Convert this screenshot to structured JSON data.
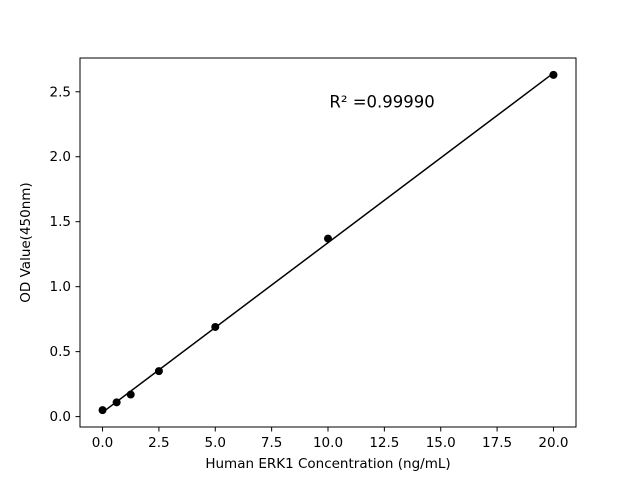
{
  "chart_data": {
    "type": "scatter",
    "x": [
      0,
      0.625,
      1.25,
      2.5,
      5,
      10,
      20
    ],
    "y": [
      0.05,
      0.11,
      0.17,
      0.35,
      0.69,
      1.37,
      2.63
    ],
    "fit_line": {
      "x1": 0,
      "y1": 0.033,
      "x2": 20,
      "y2": 2.644
    },
    "title": "",
    "xlabel": "Human ERK1 Concentration (ng/mL)",
    "ylabel": "OD Value(450nm)",
    "xlim": [
      -1,
      21
    ],
    "ylim": [
      -0.08,
      2.76
    ],
    "xticks": [
      0,
      2.5,
      5,
      7.5,
      10,
      12.5,
      15,
      17.5,
      20
    ],
    "xtick_labels": [
      "0.0",
      "2.5",
      "5.0",
      "7.5",
      "10.0",
      "12.5",
      "15.0",
      "17.5",
      "20.0"
    ],
    "yticks": [
      0,
      0.5,
      1,
      1.5,
      2,
      2.5
    ],
    "ytick_labels": [
      "0.0",
      "0.5",
      "1.0",
      "1.5",
      "2.0",
      "2.5"
    ],
    "annotation": {
      "text": "R² =0.99990",
      "x": 12.4,
      "y": 2.38
    },
    "marker_color": "#000000",
    "line_color": "#000000",
    "spine_color": "#000000",
    "background_color": "#ffffff",
    "legend": "none",
    "grid": false
  }
}
